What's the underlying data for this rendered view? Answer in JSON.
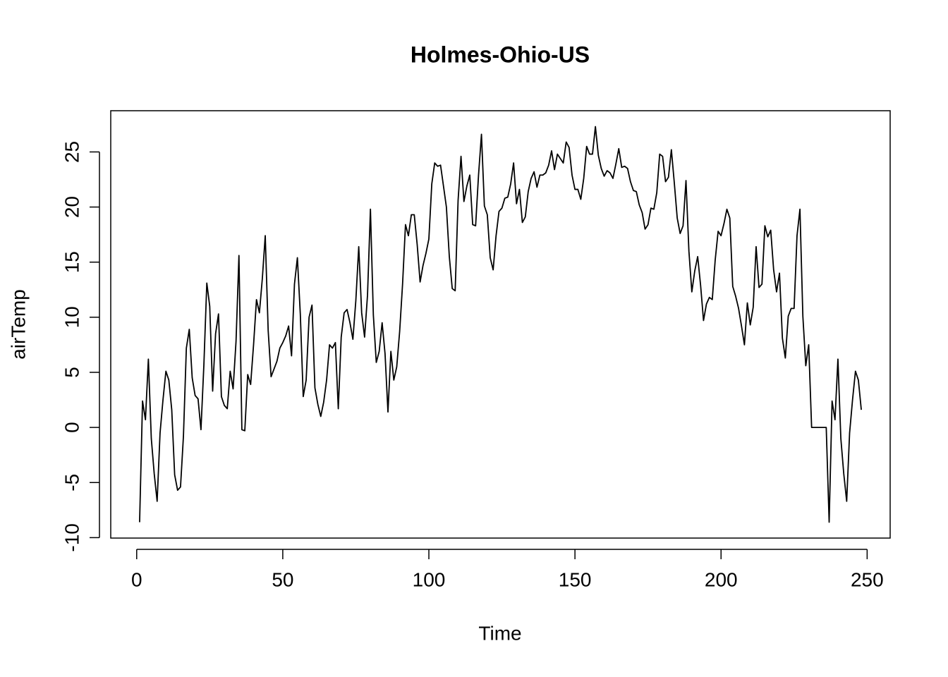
{
  "chart_data": {
    "type": "line",
    "title": "Holmes-Ohio-US",
    "x_label": "Time",
    "y_label": "airTemp",
    "color": "#000000",
    "x": [
      1,
      2,
      3,
      4,
      5,
      6,
      7,
      8,
      9,
      10,
      11,
      12,
      13,
      14,
      15,
      16,
      17,
      18,
      19,
      20,
      21,
      22,
      23,
      24,
      25,
      26,
      27,
      28,
      29,
      30,
      31,
      32,
      33,
      34,
      35,
      36,
      37,
      38,
      39,
      40,
      41,
      42,
      43,
      44,
      45,
      46,
      47,
      48,
      49,
      50,
      51,
      52,
      53,
      54,
      55,
      56,
      57,
      58,
      59,
      60,
      61,
      62,
      63,
      64,
      65,
      66,
      67,
      68,
      69,
      70,
      71,
      72,
      73,
      74,
      75,
      76,
      77,
      78,
      79,
      80,
      81,
      82,
      83,
      84,
      85,
      86,
      87,
      88,
      89,
      90,
      91,
      92,
      93,
      94,
      95,
      96,
      97,
      98,
      99,
      100,
      101,
      102,
      103,
      104,
      105,
      106,
      107,
      108,
      109,
      110,
      111,
      112,
      113,
      114,
      115,
      116,
      117,
      118,
      119,
      120,
      121,
      122,
      123,
      124,
      125,
      126,
      127,
      128,
      129,
      130,
      131,
      132,
      133,
      134,
      135,
      136,
      137,
      138,
      139,
      140,
      141,
      142,
      143,
      144,
      145,
      146,
      147,
      148,
      149,
      150,
      151,
      152,
      153,
      154,
      155,
      156,
      157,
      158,
      159,
      160,
      161,
      162,
      163,
      164,
      165,
      166,
      167,
      168,
      169,
      170,
      171,
      172,
      173,
      174,
      175,
      176,
      177,
      178,
      179,
      180,
      181,
      182,
      183,
      184,
      185,
      186,
      187,
      188,
      189,
      190,
      191,
      192,
      193,
      194,
      195,
      196,
      197,
      198,
      199,
      200,
      201,
      202,
      203,
      204,
      205,
      206,
      207,
      208,
      209,
      210,
      211,
      212,
      213,
      214,
      215,
      216,
      217,
      218,
      219,
      220,
      221,
      222,
      223,
      224,
      225,
      226,
      227,
      228,
      229,
      230,
      231,
      232,
      233,
      234,
      235,
      236,
      237,
      238,
      239,
      240,
      241,
      242,
      243,
      244,
      245,
      246,
      247,
      248
    ],
    "values": [
      -8.6,
      2.4,
      0.7,
      6.2,
      -1.0,
      -4.2,
      -6.7,
      -0.5,
      2.5,
      5.1,
      4.3,
      1.6,
      -4.3,
      -5.7,
      -5.4,
      -0.8,
      7.2,
      8.9,
      4.5,
      2.9,
      2.6,
      -0.2,
      5.7,
      13.1,
      11.0,
      3.3,
      8.5,
      10.3,
      2.8,
      2.0,
      1.7,
      5.1,
      3.5,
      7.8,
      15.6,
      -0.2,
      -0.3,
      4.8,
      3.9,
      7.5,
      11.6,
      10.4,
      13.5,
      17.4,
      8.8,
      4.6,
      5.3,
      6.0,
      7.2,
      7.7,
      8.3,
      9.2,
      6.5,
      13.0,
      15.4,
      10.3,
      2.8,
      4.3,
      10.0,
      11.1,
      3.6,
      2.1,
      1.0,
      2.3,
      4.3,
      7.5,
      7.2,
      7.7,
      1.7,
      8.2,
      10.4,
      10.7,
      9.5,
      8.0,
      11.5,
      16.4,
      10.4,
      8.2,
      12.0,
      19.8,
      10.2,
      5.9,
      6.9,
      9.5,
      6.7,
      1.4,
      6.9,
      4.3,
      5.5,
      8.7,
      13.0,
      18.4,
      17.4,
      19.3,
      19.3,
      16.6,
      13.2,
      14.7,
      15.8,
      17.1,
      22.1,
      24.0,
      23.7,
      23.8,
      21.9,
      20.0,
      15.5,
      12.6,
      12.4,
      20.6,
      24.6,
      20.5,
      21.9,
      22.9,
      18.4,
      18.3,
      22.9,
      26.6,
      20.1,
      19.3,
      15.4,
      14.3,
      17.4,
      19.6,
      19.9,
      20.8,
      20.9,
      22.1,
      24.0,
      20.3,
      21.6,
      18.6,
      19.1,
      21.4,
      22.6,
      23.2,
      21.8,
      22.9,
      22.9,
      23.1,
      23.8,
      25.1,
      23.4,
      24.8,
      24.4,
      24.0,
      25.9,
      25.4,
      22.9,
      21.6,
      21.6,
      20.7,
      22.6,
      25.5,
      24.8,
      24.8,
      27.3,
      24.7,
      23.5,
      22.8,
      23.3,
      23.1,
      22.6,
      23.9,
      25.3,
      23.6,
      23.7,
      23.5,
      22.3,
      21.5,
      21.4,
      20.2,
      19.5,
      18.0,
      18.4,
      19.9,
      19.8,
      21.3,
      24.8,
      24.6,
      22.3,
      22.7,
      25.2,
      22.2,
      19.0,
      17.6,
      18.3,
      22.4,
      16.0,
      12.3,
      14.2,
      15.5,
      12.9,
      9.7,
      11.2,
      11.8,
      11.6,
      15.2,
      17.8,
      17.4,
      18.5,
      19.8,
      19.0,
      12.8,
      11.9,
      10.8,
      9.2,
      7.5,
      11.3,
      9.3,
      10.9,
      16.4,
      12.7,
      13.0,
      18.3,
      17.3,
      17.9,
      14.3,
      12.3,
      14.0,
      8.1,
      6.3,
      10.1,
      10.8,
      10.8,
      17.4,
      19.8,
      10.1,
      5.6,
      7.5,
      0,
      0,
      0,
      0,
      0,
      0,
      -8.6,
      2.4,
      0.7,
      6.2,
      -1.0,
      -4.2,
      -6.7,
      -0.5,
      2.5,
      5.1,
      4.3,
      1.6
    ],
    "xlim": [
      -8.88,
      257.88
    ],
    "ylim": [
      -10.04,
      28.74
    ],
    "xticks": [
      0,
      50,
      100,
      150,
      200,
      250
    ],
    "yticks": [
      -10,
      -5,
      0,
      5,
      10,
      15,
      20,
      25
    ]
  }
}
